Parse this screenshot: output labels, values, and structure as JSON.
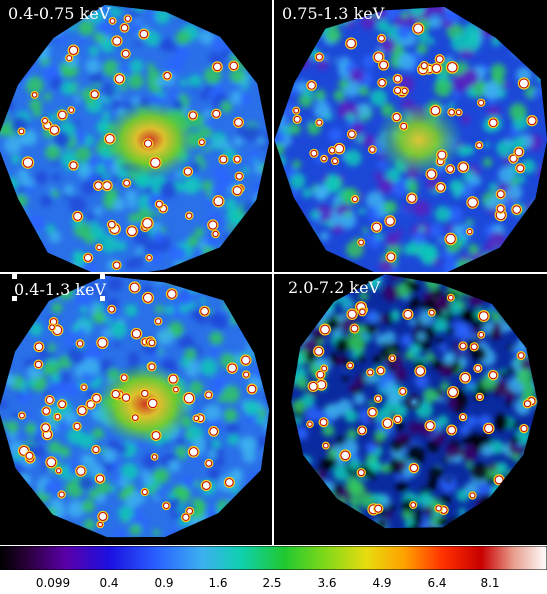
{
  "panels": [
    {
      "label": "0.4-0.75 keV"
    },
    {
      "label": "0.75-1.3 keV"
    },
    {
      "label": "0.4-1.3 keV"
    },
    {
      "label": "2.0-7.2 keV"
    }
  ],
  "colorbar": {
    "ticks": [
      "0.099",
      "0.4",
      "0.9",
      "1.6",
      "2.5",
      "3.6",
      "4.9",
      "6.4",
      "8.1"
    ]
  }
}
